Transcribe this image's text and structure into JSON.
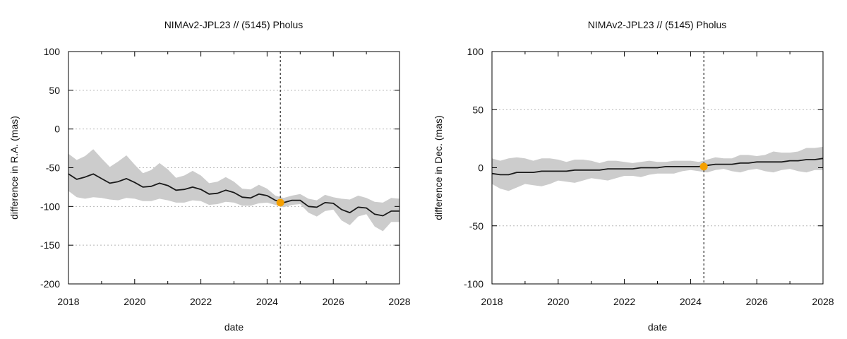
{
  "chart_data": [
    {
      "type": "line",
      "title": "NIMAv2-JPL23 // (5145) Pholus",
      "xlabel": "date",
      "ylabel": "difference in R.A. (mas)",
      "xlim": [
        2018,
        2028
      ],
      "ylim": [
        -200,
        100
      ],
      "xticks": [
        2018,
        2020,
        2022,
        2024,
        2026,
        2028
      ],
      "yticks": [
        -200,
        -150,
        -100,
        -50,
        0,
        50,
        100
      ],
      "grid": true,
      "band_color": "#cccccc",
      "line_color": "#1a1a1a",
      "marker_color": "#f5a000",
      "reference_line_x": 2024.4,
      "marker": {
        "x": 2024.4,
        "y": -95
      },
      "series": [
        {
          "x": [
            2018.0,
            2018.25,
            2018.5,
            2018.75,
            2019.0,
            2019.25,
            2019.5,
            2019.75,
            2020.0,
            2020.25,
            2020.5,
            2020.75,
            2021.0,
            2021.25,
            2021.5,
            2021.75,
            2022.0,
            2022.25,
            2022.5,
            2022.75,
            2023.0,
            2023.25,
            2023.5,
            2023.75,
            2024.0,
            2024.25,
            2024.5,
            2024.75,
            2025.0,
            2025.25,
            2025.5,
            2025.75,
            2026.0,
            2026.25,
            2026.5,
            2026.75,
            2027.0,
            2027.25,
            2027.5,
            2027.75,
            2028.0
          ],
          "y": [
            -58,
            -65,
            -62,
            -58,
            -64,
            -70,
            -68,
            -64,
            -69,
            -75,
            -74,
            -70,
            -73,
            -79,
            -78,
            -75,
            -78,
            -84,
            -83,
            -79,
            -82,
            -88,
            -89,
            -84,
            -86,
            -92,
            -95,
            -92,
            -92,
            -100,
            -101,
            -95,
            -96,
            -104,
            -108,
            -101,
            -102,
            -110,
            -112,
            -106,
            -106
          ],
          "lower": [
            -80,
            -88,
            -90,
            -88,
            -89,
            -91,
            -92,
            -89,
            -90,
            -93,
            -93,
            -90,
            -92,
            -95,
            -95,
            -92,
            -93,
            -98,
            -97,
            -94,
            -95,
            -99,
            -99,
            -96,
            -95,
            -98,
            -101,
            -98,
            -97,
            -108,
            -113,
            -106,
            -104,
            -118,
            -124,
            -113,
            -110,
            -126,
            -132,
            -120,
            -120
          ],
          "upper": [
            -32,
            -40,
            -35,
            -26,
            -38,
            -49,
            -42,
            -34,
            -46,
            -57,
            -53,
            -44,
            -52,
            -63,
            -60,
            -54,
            -60,
            -70,
            -68,
            -62,
            -68,
            -77,
            -78,
            -72,
            -77,
            -86,
            -89,
            -86,
            -84,
            -90,
            -92,
            -85,
            -88,
            -90,
            -91,
            -86,
            -89,
            -94,
            -95,
            -89,
            -90
          ]
        }
      ]
    },
    {
      "type": "line",
      "title": "NIMAv2-JPL23 // (5145) Pholus",
      "xlabel": "date",
      "ylabel": "difference in Dec. (mas)",
      "xlim": [
        2018,
        2028
      ],
      "ylim": [
        -100,
        100
      ],
      "xticks": [
        2018,
        2020,
        2022,
        2024,
        2026,
        2028
      ],
      "yticks": [
        -100,
        -50,
        0,
        50,
        100
      ],
      "grid": true,
      "band_color": "#cccccc",
      "line_color": "#1a1a1a",
      "marker_color": "#f5a000",
      "reference_line_x": 2024.4,
      "marker": {
        "x": 2024.4,
        "y": 1
      },
      "series": [
        {
          "x": [
            2018.0,
            2018.25,
            2018.5,
            2018.75,
            2019.0,
            2019.25,
            2019.5,
            2019.75,
            2020.0,
            2020.25,
            2020.5,
            2020.75,
            2021.0,
            2021.25,
            2021.5,
            2021.75,
            2022.0,
            2022.25,
            2022.5,
            2022.75,
            2023.0,
            2023.25,
            2023.5,
            2023.75,
            2024.0,
            2024.25,
            2024.5,
            2024.75,
            2025.0,
            2025.25,
            2025.5,
            2025.75,
            2026.0,
            2026.25,
            2026.5,
            2026.75,
            2027.0,
            2027.25,
            2027.5,
            2027.75,
            2028.0
          ],
          "y": [
            -5,
            -6,
            -6,
            -4,
            -4,
            -4,
            -3,
            -3,
            -3,
            -3,
            -2,
            -2,
            -2,
            -2,
            -1,
            -1,
            -1,
            -1,
            0,
            0,
            0,
            1,
            1,
            1,
            1,
            1,
            2,
            3,
            3,
            3,
            4,
            4,
            5,
            5,
            5,
            5,
            6,
            6,
            7,
            7,
            8
          ],
          "lower": [
            -14,
            -18,
            -20,
            -17,
            -14,
            -15,
            -16,
            -14,
            -11,
            -12,
            -13,
            -11,
            -9,
            -10,
            -11,
            -9,
            -7,
            -7,
            -8,
            -6,
            -5,
            -5,
            -5,
            -3,
            -2,
            -3,
            -4,
            -2,
            -1,
            -3,
            -4,
            -2,
            -1,
            -3,
            -4,
            -2,
            -1,
            -3,
            -4,
            -2,
            -2
          ],
          "upper": [
            8,
            6,
            8,
            9,
            8,
            6,
            8,
            8,
            7,
            5,
            7,
            7,
            6,
            4,
            6,
            6,
            5,
            4,
            5,
            6,
            5,
            5,
            6,
            6,
            6,
            5,
            7,
            9,
            8,
            8,
            11,
            11,
            10,
            11,
            14,
            13,
            13,
            14,
            17,
            17,
            18
          ]
        }
      ]
    }
  ]
}
